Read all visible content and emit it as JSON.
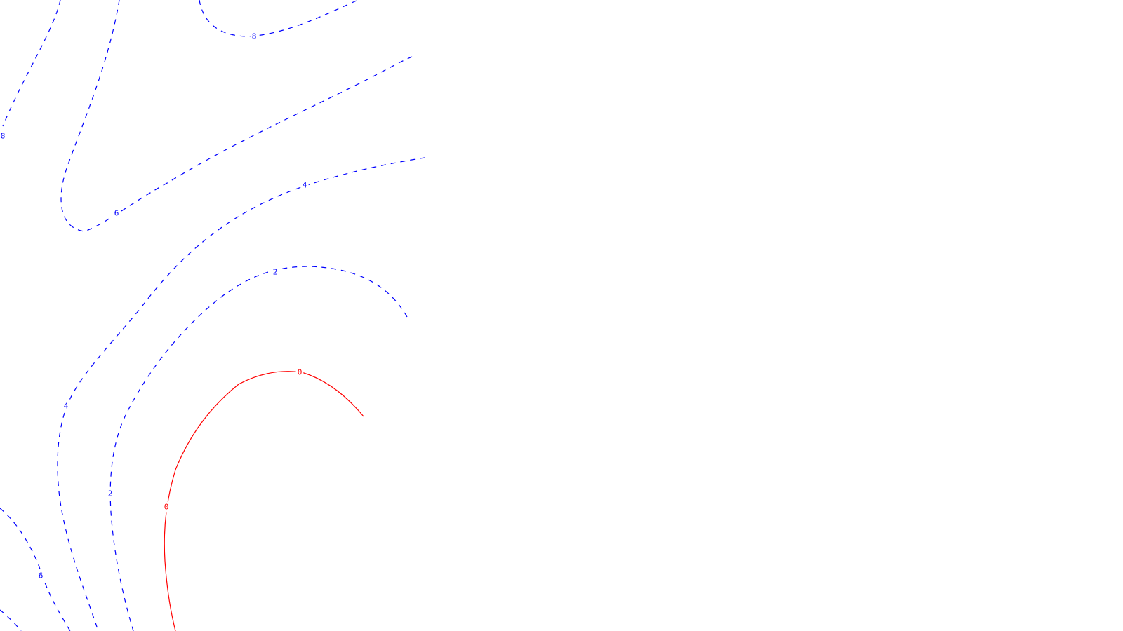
{
  "chart_data": {
    "type": "contour",
    "title": "",
    "xlabel": "",
    "ylabel": "",
    "colors": {
      "positive": "#0000ff",
      "zero": "#ff0000",
      "background": "#ffffff"
    },
    "levels": [
      {
        "id": "level-8",
        "value": 8,
        "label": "8",
        "style": "dashed"
      },
      {
        "id": "level-6",
        "value": 6,
        "label": "6",
        "style": "dashed"
      },
      {
        "id": "level-4",
        "value": 4,
        "label": "4",
        "style": "dashed"
      },
      {
        "id": "level-2",
        "value": 2,
        "label": "2",
        "style": "dashed"
      },
      {
        "id": "level-0",
        "value": 0,
        "label": "0",
        "style": "solid"
      }
    ]
  }
}
